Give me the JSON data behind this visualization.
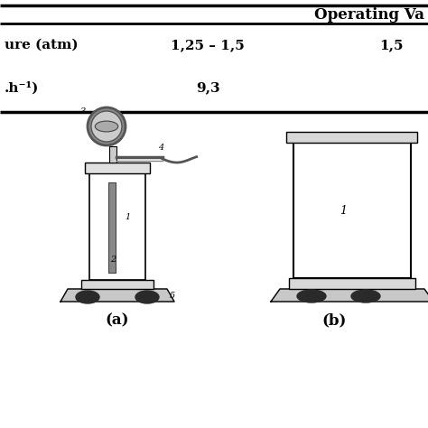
{
  "background_color": "#ffffff",
  "table_header": "Operating Va",
  "table_row1_label": "ure (atm)",
  "table_row1_val1": "1,25 – 1,5",
  "table_row1_val2": "1,5",
  "table_row2_label": ".h⁻¹)",
  "table_row2_val1": "9,3",
  "table_row2_val2": "",
  "label_a": "(a)",
  "label_b": "(b)",
  "label1_a": "1",
  "label2_a": "2",
  "label3_a": "3",
  "label4_a": "4",
  "label5_a": "5",
  "label1_b": "1",
  "fig_width": 4.74,
  "fig_height": 4.74,
  "fig_dpi": 100
}
